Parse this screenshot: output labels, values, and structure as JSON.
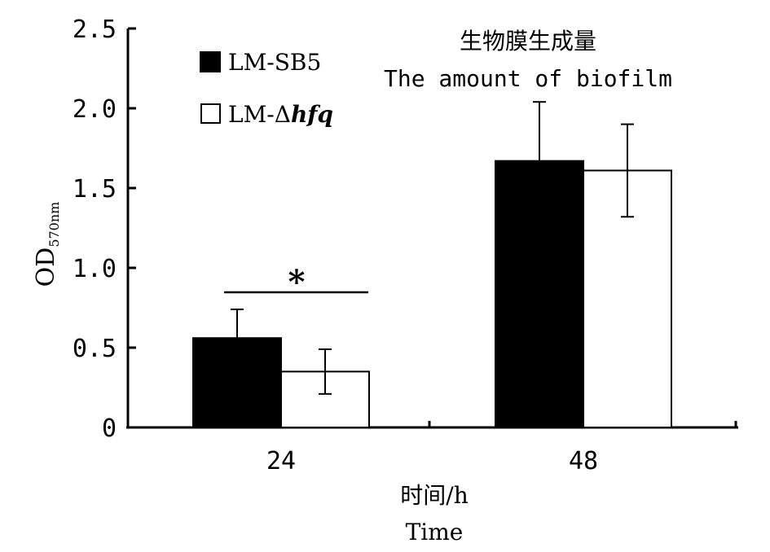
{
  "chart_data": {
    "type": "bar",
    "title": "生物膜生成量",
    "subtitle": "The amount of biofilm",
    "ylabel_main": "OD",
    "ylabel_sub": "570nm",
    "xlabel_cn": "时间/h",
    "xlabel_en": "Time",
    "ylim": [
      0,
      2.5
    ],
    "yticks": [
      0,
      0.5,
      1.0,
      1.5,
      2.0,
      2.5
    ],
    "ytick_labels": [
      "0",
      "0.5",
      "1.0",
      "1.5",
      "2.0",
      "2.5"
    ],
    "categories": [
      "24",
      "48"
    ],
    "series": [
      {
        "name": "LM-SB5",
        "fill": "#000000",
        "values": [
          0.56,
          1.67
        ],
        "errors": [
          0.18,
          0.37
        ]
      },
      {
        "name": "LM-Δhfq",
        "name_prefix": "LM-Δ",
        "name_italic": "hfq",
        "fill": "#ffffff",
        "values": [
          0.35,
          1.61
        ],
        "errors": [
          0.14,
          0.29
        ]
      }
    ],
    "significance": {
      "category": "24",
      "label": "*"
    },
    "grid": false,
    "legend_position": "top-left"
  }
}
